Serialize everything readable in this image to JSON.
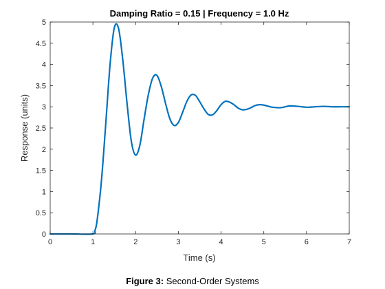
{
  "chart_data": {
    "type": "line",
    "title": "Damping Ratio = 0.15 | Frequency = 1.0 Hz",
    "xlabel": "Time (s)",
    "ylabel": "Response (units)",
    "xlim": [
      0,
      7
    ],
    "ylim": [
      0,
      5
    ],
    "xticks": [
      0,
      1,
      2,
      3,
      4,
      5,
      6,
      7
    ],
    "yticks": [
      0,
      0.5,
      1,
      1.5,
      2,
      2.5,
      3,
      3.5,
      4,
      4.5,
      5
    ],
    "xtick_labels": [
      "0",
      "1",
      "2",
      "3",
      "4",
      "5",
      "6",
      "7"
    ],
    "ytick_labels": [
      "0",
      "0.5",
      "1",
      "1.5",
      "2",
      "2.5",
      "3",
      "3.5",
      "4",
      "4.5",
      "5"
    ],
    "grid": false,
    "series": [
      {
        "color": "#0072BD",
        "x": [
          0,
          0.5,
          1.0,
          1.05,
          1.1,
          1.2,
          1.3,
          1.4,
          1.5,
          1.6,
          1.7,
          1.8,
          1.9,
          2.0,
          2.1,
          2.2,
          2.3,
          2.4,
          2.5,
          2.6,
          2.7,
          2.8,
          2.9,
          3.0,
          3.1,
          3.2,
          3.3,
          3.4,
          3.5,
          3.6,
          3.7,
          3.8,
          3.9,
          4.0,
          4.1,
          4.2,
          4.3,
          4.4,
          4.5,
          4.6,
          4.7,
          4.8,
          4.9,
          5.0,
          5.2,
          5.4,
          5.6,
          5.8,
          6.0,
          6.2,
          6.4,
          6.6,
          6.8,
          7.0
        ],
        "y": [
          0,
          0,
          0,
          0.09,
          0.33,
          1.26,
          2.59,
          3.98,
          4.86,
          4.85,
          4.1,
          3.07,
          2.18,
          1.86,
          2.1,
          2.72,
          3.3,
          3.68,
          3.74,
          3.48,
          3.08,
          2.72,
          2.56,
          2.63,
          2.87,
          3.13,
          3.28,
          3.27,
          3.12,
          2.95,
          2.82,
          2.81,
          2.91,
          3.05,
          3.13,
          3.11,
          3.05,
          2.97,
          2.93,
          2.94,
          2.98,
          3.03,
          3.05,
          3.04,
          2.99,
          2.98,
          3.02,
          3.01,
          2.99,
          3.0,
          3.01,
          3.0,
          3.0,
          3.0
        ]
      }
    ]
  },
  "caption": {
    "label": "Figure 3:",
    "text": " Second-Order Systems"
  }
}
